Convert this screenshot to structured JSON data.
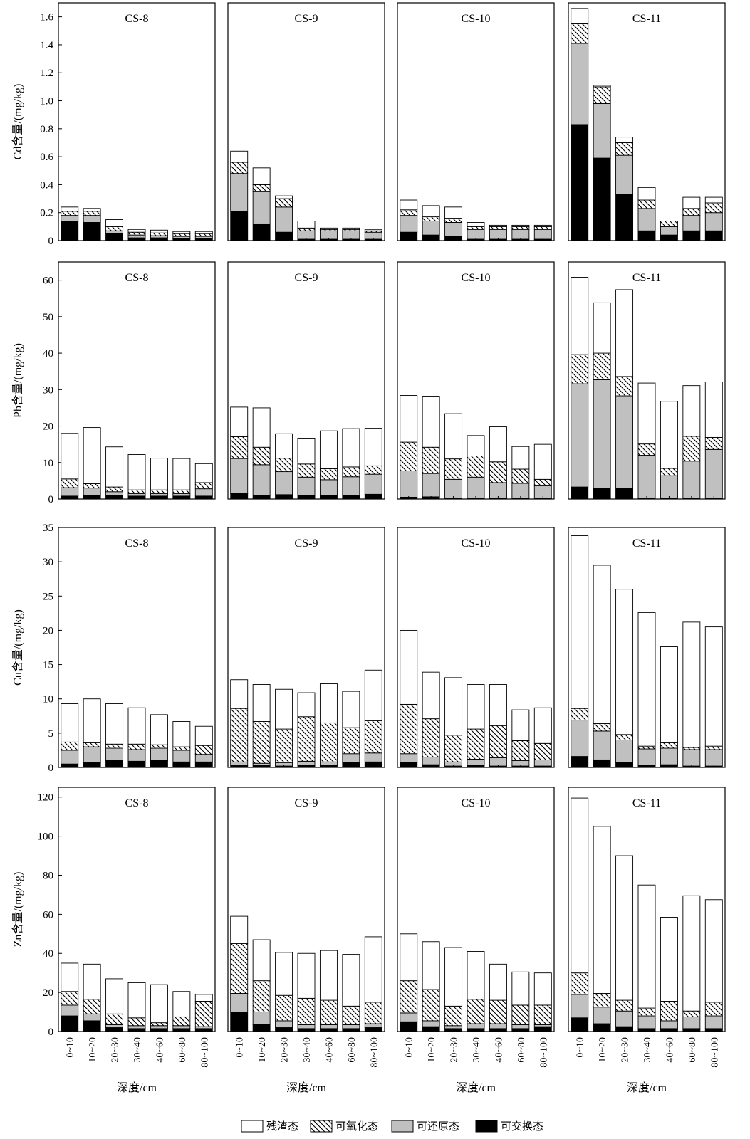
{
  "chart_data": {
    "type": "bar",
    "stacked": true,
    "categories": [
      "0~10",
      "10~20",
      "20~30",
      "30~40",
      "40~60",
      "60~80",
      "80~100"
    ],
    "xlabel": "深度/cm",
    "legend": {
      "placement": "bottom",
      "items": [
        {
          "name": "残渣态",
          "fill": "white"
        },
        {
          "name": "可氧化态",
          "fill": "hatch"
        },
        {
          "name": "可还原态",
          "fill": "#c0c0c0"
        },
        {
          "name": "可交换态",
          "fill": "#000000"
        }
      ]
    },
    "colors": {
      "residual": "#ffffff",
      "oxidizable": "hatch",
      "reducible": "#c0c0c0",
      "exchangeable": "#000000"
    },
    "metals": [
      {
        "ylabel": "Cd含量/(mg/kg)",
        "ylim": [
          0,
          1.7
        ],
        "ticks": [
          0,
          0.2,
          0.4,
          0.6,
          0.8,
          1.0,
          1.2,
          1.4,
          1.6
        ],
        "tick_labels": [
          "0",
          "0.2",
          "0.4",
          "0.6",
          "0.8",
          "1.0",
          "1.2",
          "1.4",
          "1.6"
        ],
        "sites": [
          {
            "name": "CS-8",
            "exchangeable": [
              0.14,
              0.13,
              0.05,
              0.02,
              0.02,
              0.015,
              0.015
            ],
            "reducible": [
              0.04,
              0.05,
              0.02,
              0.02,
              0.015,
              0.015,
              0.015
            ],
            "oxidizable": [
              0.03,
              0.03,
              0.03,
              0.02,
              0.02,
              0.02,
              0.02
            ],
            "residual": [
              0.03,
              0.02,
              0.05,
              0.02,
              0.02,
              0.015,
              0.015
            ]
          },
          {
            "name": "CS-9",
            "exchangeable": [
              0.21,
              0.12,
              0.06,
              0.01,
              0.01,
              0.01,
              0.01
            ],
            "reducible": [
              0.27,
              0.23,
              0.18,
              0.06,
              0.06,
              0.06,
              0.05
            ],
            "oxidizable": [
              0.08,
              0.05,
              0.06,
              0.02,
              0.01,
              0.01,
              0.01
            ],
            "residual": [
              0.08,
              0.12,
              0.02,
              0.05,
              0.01,
              0.01,
              0.01
            ]
          },
          {
            "name": "CS-10",
            "exchangeable": [
              0.06,
              0.04,
              0.03,
              0.01,
              0.01,
              0.01,
              0.01
            ],
            "reducible": [
              0.12,
              0.1,
              0.1,
              0.07,
              0.07,
              0.07,
              0.07
            ],
            "oxidizable": [
              0.04,
              0.03,
              0.03,
              0.02,
              0.02,
              0.02,
              0.02
            ],
            "residual": [
              0.07,
              0.08,
              0.08,
              0.03,
              0.01,
              0.01,
              0.01
            ]
          },
          {
            "name": "CS-11",
            "exchangeable": [
              0.83,
              0.59,
              0.33,
              0.07,
              0.04,
              0.07,
              0.07
            ],
            "reducible": [
              0.58,
              0.39,
              0.28,
              0.16,
              0.06,
              0.11,
              0.13
            ],
            "oxidizable": [
              0.14,
              0.12,
              0.09,
              0.06,
              0.04,
              0.05,
              0.07
            ],
            "residual": [
              0.11,
              0.01,
              0.04,
              0.09,
              0.0,
              0.08,
              0.04
            ]
          }
        ]
      },
      {
        "ylabel": "Pb含量/(mg/kg)",
        "ylim": [
          0,
          65
        ],
        "ticks": [
          0,
          10,
          20,
          30,
          40,
          50,
          60
        ],
        "tick_labels": [
          "0",
          "10",
          "20",
          "30",
          "40",
          "50",
          "60"
        ],
        "sites": [
          {
            "name": "CS-8",
            "exchangeable": [
              0.8,
              1.0,
              1.0,
              0.8,
              0.8,
              0.8,
              0.8
            ],
            "reducible": [
              2.3,
              2.0,
              1.0,
              0.7,
              0.7,
              0.7,
              2.0
            ],
            "oxidizable": [
              2.4,
              1.2,
              1.3,
              1.0,
              1.0,
              1.0,
              1.7
            ],
            "residual": [
              12.5,
              15.4,
              11.0,
              9.7,
              8.7,
              8.6,
              5.2
            ]
          },
          {
            "name": "CS-9",
            "exchangeable": [
              1.5,
              1.0,
              1.2,
              1.0,
              1.0,
              1.0,
              1.3
            ],
            "reducible": [
              9.6,
              8.4,
              6.3,
              5.0,
              4.3,
              5.1,
              5.5
            ],
            "oxidizable": [
              6.0,
              4.8,
              3.7,
              3.6,
              3.0,
              2.7,
              2.3
            ],
            "residual": [
              8.1,
              10.8,
              6.7,
              7.1,
              10.4,
              10.5,
              10.3
            ]
          },
          {
            "name": "CS-10",
            "exchangeable": [
              0.5,
              0.6,
              0.2,
              0.2,
              0.2,
              0.2,
              0.2
            ],
            "reducible": [
              7.2,
              6.4,
              5.2,
              5.8,
              4.3,
              4.1,
              3.4
            ],
            "oxidizable": [
              7.9,
              7.2,
              5.6,
              5.8,
              5.7,
              3.9,
              1.8
            ],
            "residual": [
              12.8,
              14.0,
              12.4,
              5.6,
              9.6,
              6.2,
              9.6
            ]
          },
          {
            "name": "CS-11",
            "exchangeable": [
              3.3,
              3.0,
              3.0,
              0.3,
              0.3,
              0.3,
              0.3
            ],
            "reducible": [
              28.3,
              29.7,
              25.3,
              11.7,
              6.1,
              10.1,
              13.3
            ],
            "oxidizable": [
              8.0,
              7.3,
              5.3,
              3.1,
              2.0,
              6.8,
              3.3
            ],
            "residual": [
              21.2,
              13.8,
              23.8,
              16.7,
              18.4,
              13.9,
              15.2
            ]
          }
        ]
      },
      {
        "ylabel": "Cu含量/(mg/kg)",
        "ylim": [
          0,
          35
        ],
        "ticks": [
          0,
          5,
          10,
          15,
          20,
          25,
          30,
          35
        ],
        "tick_labels": [
          "0",
          "5",
          "10",
          "15",
          "20",
          "25",
          "30",
          "35"
        ],
        "sites": [
          {
            "name": "CS-8",
            "exchangeable": [
              0.5,
              0.7,
              1.0,
              0.9,
              1.0,
              0.8,
              0.8
            ],
            "reducible": [
              2.0,
              2.3,
              1.8,
              1.7,
              1.8,
              1.7,
              1.1
            ],
            "oxidizable": [
              1.2,
              0.6,
              0.6,
              0.8,
              0.5,
              0.5,
              1.3
            ],
            "residual": [
              5.6,
              6.4,
              5.9,
              5.3,
              4.4,
              3.7,
              2.8
            ]
          },
          {
            "name": "CS-9",
            "exchangeable": [
              0.3,
              0.3,
              0.2,
              0.3,
              0.3,
              0.7,
              0.8
            ],
            "reducible": [
              0.5,
              0.3,
              0.5,
              0.6,
              0.5,
              1.3,
              1.3
            ],
            "oxidizable": [
              7.8,
              6.1,
              4.9,
              6.5,
              5.7,
              3.8,
              4.7
            ],
            "residual": [
              4.2,
              5.4,
              5.8,
              3.5,
              5.7,
              5.3,
              7.4
            ]
          },
          {
            "name": "CS-10",
            "exchangeable": [
              0.7,
              0.4,
              0.2,
              0.3,
              0.2,
              0.2,
              0.2
            ],
            "reducible": [
              1.3,
              1.1,
              0.6,
              0.9,
              1.2,
              0.8,
              0.9
            ],
            "oxidizable": [
              7.2,
              5.6,
              3.9,
              4.4,
              4.7,
              2.9,
              2.4
            ],
            "residual": [
              10.8,
              6.8,
              8.4,
              6.5,
              6.0,
              4.5,
              5.2
            ]
          },
          {
            "name": "CS-11",
            "exchangeable": [
              1.6,
              1.1,
              0.7,
              0.3,
              0.4,
              0.2,
              0.2
            ],
            "reducible": [
              5.3,
              4.2,
              3.3,
              2.4,
              2.4,
              2.4,
              2.4
            ],
            "oxidizable": [
              1.7,
              1.1,
              0.8,
              0.4,
              0.8,
              0.3,
              0.5
            ],
            "residual": [
              25.2,
              23.1,
              21.2,
              19.5,
              14.0,
              18.3,
              17.4
            ]
          }
        ]
      },
      {
        "ylabel": "Zn含量/(mg/kg)",
        "ylim": [
          0,
          125
        ],
        "ticks": [
          0,
          20,
          40,
          60,
          80,
          100,
          120
        ],
        "tick_labels": [
          "0",
          "20",
          "40",
          "60",
          "80",
          "100",
          "120"
        ],
        "sites": [
          {
            "name": "CS-8",
            "exchangeable": [
              8,
              5.5,
              2,
              1.5,
              1.5,
              1.5,
              1.5
            ],
            "reducible": [
              5.5,
              3.5,
              1.5,
              1.5,
              1.5,
              1.5,
              1.0
            ],
            "oxidizable": [
              7,
              7.5,
              5.5,
              4,
              1.5,
              4.5,
              13
            ],
            "residual": [
              14.5,
              18,
              18,
              18,
              19.5,
              13,
              3.5
            ]
          },
          {
            "name": "CS-9",
            "exchangeable": [
              10,
              3.5,
              2,
              1.5,
              1.5,
              1.5,
              2
            ],
            "reducible": [
              9.5,
              6.5,
              3.5,
              2,
              2,
              2,
              2
            ],
            "oxidizable": [
              25.5,
              16,
              13,
              13.5,
              12.5,
              9.5,
              11
            ],
            "residual": [
              14,
              21,
              22,
              23,
              25.5,
              26.5,
              33.5
            ]
          },
          {
            "name": "CS-10",
            "exchangeable": [
              5,
              2.5,
              1.5,
              1.5,
              1.5,
              1.5,
              2.5
            ],
            "reducible": [
              4.5,
              3,
              1.5,
              2.5,
              2.5,
              2,
              1
            ],
            "oxidizable": [
              16.5,
              16,
              10,
              12.5,
              12,
              10,
              10
            ],
            "residual": [
              24,
              24.5,
              30,
              24.5,
              18.5,
              17,
              16.5
            ]
          },
          {
            "name": "CS-11",
            "exchangeable": [
              7,
              4,
              2.5,
              1.5,
              1.5,
              1.5,
              1.5
            ],
            "reducible": [
              12,
              8.5,
              8,
              6.5,
              4,
              6,
              6.5
            ],
            "oxidizable": [
              11,
              7,
              5.5,
              4,
              10,
              3,
              7
            ],
            "residual": [
              89.5,
              85.5,
              74,
              63,
              43,
              59,
              52.5
            ]
          }
        ]
      }
    ]
  }
}
